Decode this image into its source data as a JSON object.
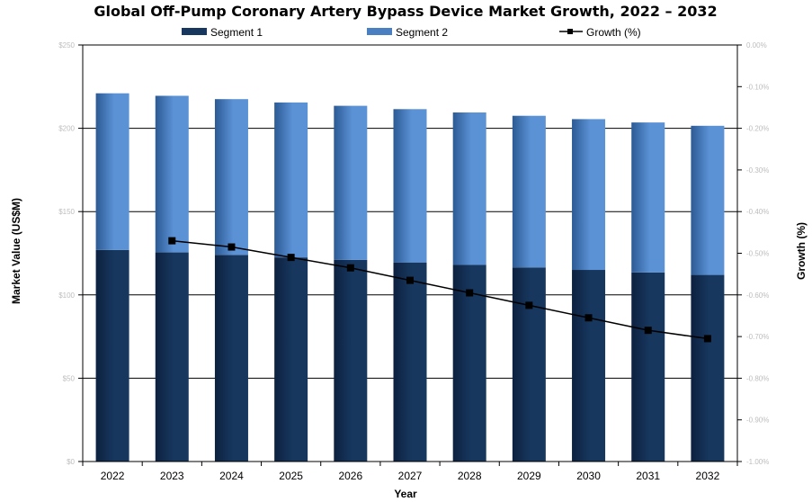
{
  "chart_data": {
    "type": "bar",
    "stacked": true,
    "title": "Global Off-Pump Coronary Artery Bypass Device Market Growth, 2022 – 2032",
    "xlabel": "Year",
    "ylabel": "Market Value (US$M)",
    "y2label": "Growth (%)",
    "categories": [
      "2022",
      "2023",
      "2024",
      "2025",
      "2026",
      "2027",
      "2028",
      "2029",
      "2030",
      "2031",
      "2032"
    ],
    "ylim": [
      0,
      250
    ],
    "yticks": [
      0,
      50,
      100,
      150,
      200,
      250
    ],
    "ytick_labels": [
      "$0",
      "$50",
      "$100",
      "$150",
      "$200",
      "$250"
    ],
    "y2lim": [
      -1.0,
      0.0
    ],
    "y2ticks": [
      0.0,
      -0.1,
      -0.2,
      -0.3,
      -0.4,
      -0.5,
      -0.6,
      -0.7,
      -0.8,
      -0.9,
      -1.0
    ],
    "y2tick_labels": [
      "0.00%",
      "-0.10%",
      "-0.20%",
      "-0.30%",
      "-0.40%",
      "-0.50%",
      "-0.60%",
      "-0.70%",
      "-0.80%",
      "-0.90%",
      "-1.00%"
    ],
    "grid": true,
    "legend_position": "top",
    "series": [
      {
        "name": "Segment 1",
        "kind": "bar",
        "axis": "left",
        "color": "#17375e",
        "values": [
          127,
          125.5,
          124,
          122.5,
          121,
          119.5,
          118,
          116.5,
          115,
          113.5,
          112
        ]
      },
      {
        "name": "Segment 2",
        "kind": "bar",
        "axis": "left",
        "color": "#4a7fc1",
        "values": [
          94,
          94,
          93.5,
          93,
          92.5,
          92,
          91.5,
          91,
          90.5,
          90,
          89.5
        ]
      },
      {
        "name": "Growth (%)",
        "kind": "line",
        "axis": "right",
        "color": "#000000",
        "values": [
          null,
          -0.47,
          -0.485,
          -0.51,
          -0.535,
          -0.565,
          -0.595,
          -0.625,
          -0.655,
          -0.685,
          -0.705
        ]
      }
    ]
  }
}
